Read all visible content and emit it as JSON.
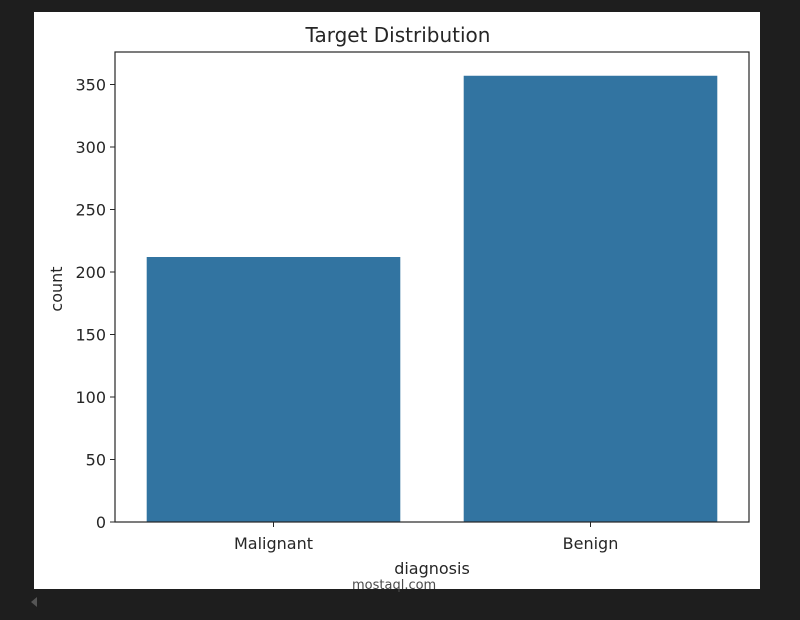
{
  "chart_data": {
    "type": "bar",
    "title": "Target Distribution",
    "xlabel": "diagnosis",
    "ylabel": "count",
    "categories": [
      "Malignant",
      "Benign"
    ],
    "values": [
      212,
      357
    ],
    "ylim": [
      0,
      376
    ],
    "yticks": [
      0,
      50,
      100,
      150,
      200,
      250,
      300,
      350
    ],
    "grid": false,
    "bar_color": "#3274a1"
  },
  "watermark": "mostaql.com"
}
